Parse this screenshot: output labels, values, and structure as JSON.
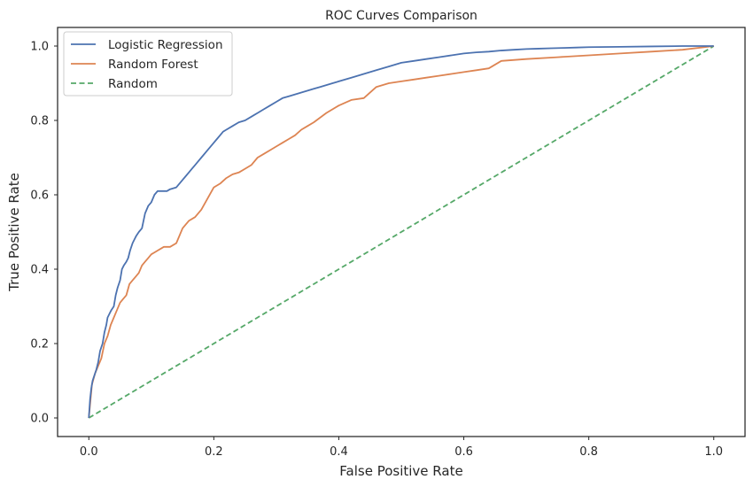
{
  "chart_data": {
    "type": "line",
    "title": "ROC Curves Comparison",
    "xlabel": "False Positive Rate",
    "ylabel": "True Positive Rate",
    "xlim": [
      -0.05,
      1.05
    ],
    "ylim": [
      -0.05,
      1.05
    ],
    "xticks": [
      "0.0",
      "0.2",
      "0.4",
      "0.6",
      "0.8",
      "1.0"
    ],
    "yticks": [
      "0.0",
      "0.2",
      "0.4",
      "0.6",
      "0.8",
      "1.0"
    ],
    "grid": false,
    "legend_position": "top-left",
    "series": [
      {
        "name": "Logistic Regression",
        "color": "#4c72b0",
        "style": "solid",
        "x": [
          0.0,
          0.002,
          0.004,
          0.006,
          0.008,
          0.01,
          0.012,
          0.015,
          0.018,
          0.02,
          0.022,
          0.025,
          0.028,
          0.03,
          0.033,
          0.036,
          0.04,
          0.043,
          0.046,
          0.05,
          0.053,
          0.056,
          0.06,
          0.063,
          0.066,
          0.07,
          0.073,
          0.076,
          0.08,
          0.085,
          0.09,
          0.095,
          0.1,
          0.105,
          0.11,
          0.115,
          0.12,
          0.125,
          0.13,
          0.14,
          0.15,
          0.155,
          0.16,
          0.165,
          0.17,
          0.175,
          0.18,
          0.19,
          0.2,
          0.205,
          0.21,
          0.215,
          0.22,
          0.23,
          0.24,
          0.25,
          0.26,
          0.27,
          0.28,
          0.29,
          0.3,
          0.31,
          0.32,
          0.33,
          0.34,
          0.35,
          0.36,
          0.37,
          0.38,
          0.39,
          0.4,
          0.42,
          0.44,
          0.46,
          0.48,
          0.5,
          0.52,
          0.54,
          0.56,
          0.58,
          0.6,
          0.62,
          0.64,
          0.66,
          0.68,
          0.7,
          0.72,
          0.74,
          0.76,
          0.78,
          0.8,
          0.85,
          0.9,
          0.95,
          1.0
        ],
        "y": [
          0.0,
          0.05,
          0.08,
          0.1,
          0.11,
          0.12,
          0.13,
          0.15,
          0.18,
          0.19,
          0.2,
          0.23,
          0.25,
          0.27,
          0.28,
          0.29,
          0.3,
          0.33,
          0.35,
          0.37,
          0.4,
          0.41,
          0.42,
          0.43,
          0.45,
          0.47,
          0.48,
          0.49,
          0.5,
          0.51,
          0.55,
          0.57,
          0.58,
          0.6,
          0.61,
          0.61,
          0.61,
          0.61,
          0.615,
          0.62,
          0.64,
          0.65,
          0.66,
          0.67,
          0.68,
          0.69,
          0.7,
          0.72,
          0.74,
          0.75,
          0.76,
          0.77,
          0.775,
          0.785,
          0.795,
          0.8,
          0.81,
          0.82,
          0.83,
          0.84,
          0.85,
          0.86,
          0.865,
          0.87,
          0.875,
          0.88,
          0.885,
          0.89,
          0.895,
          0.9,
          0.905,
          0.915,
          0.925,
          0.935,
          0.945,
          0.955,
          0.96,
          0.965,
          0.97,
          0.975,
          0.98,
          0.983,
          0.985,
          0.988,
          0.99,
          0.992,
          0.993,
          0.994,
          0.995,
          0.996,
          0.997,
          0.998,
          0.999,
          1.0,
          1.0
        ]
      },
      {
        "name": "Random Forest",
        "color": "#dd8452",
        "style": "solid",
        "x": [
          0.0,
          0.005,
          0.01,
          0.015,
          0.02,
          0.025,
          0.03,
          0.035,
          0.04,
          0.045,
          0.05,
          0.055,
          0.06,
          0.065,
          0.07,
          0.075,
          0.08,
          0.085,
          0.09,
          0.095,
          0.1,
          0.105,
          0.11,
          0.12,
          0.13,
          0.14,
          0.15,
          0.16,
          0.17,
          0.18,
          0.19,
          0.2,
          0.21,
          0.22,
          0.23,
          0.24,
          0.25,
          0.26,
          0.27,
          0.28,
          0.29,
          0.3,
          0.31,
          0.32,
          0.33,
          0.34,
          0.35,
          0.36,
          0.38,
          0.4,
          0.42,
          0.44,
          0.46,
          0.48,
          0.5,
          0.52,
          0.54,
          0.56,
          0.58,
          0.6,
          0.62,
          0.64,
          0.66,
          0.7,
          0.75,
          0.8,
          0.85,
          0.9,
          0.95,
          1.0
        ],
        "y": [
          0.0,
          0.09,
          0.12,
          0.14,
          0.16,
          0.2,
          0.22,
          0.25,
          0.27,
          0.29,
          0.31,
          0.32,
          0.33,
          0.36,
          0.37,
          0.38,
          0.39,
          0.41,
          0.42,
          0.43,
          0.44,
          0.445,
          0.45,
          0.46,
          0.46,
          0.47,
          0.51,
          0.53,
          0.54,
          0.56,
          0.59,
          0.62,
          0.63,
          0.645,
          0.655,
          0.66,
          0.67,
          0.68,
          0.7,
          0.71,
          0.72,
          0.73,
          0.74,
          0.75,
          0.76,
          0.775,
          0.785,
          0.795,
          0.82,
          0.84,
          0.855,
          0.86,
          0.89,
          0.9,
          0.905,
          0.91,
          0.915,
          0.92,
          0.925,
          0.93,
          0.935,
          0.94,
          0.96,
          0.965,
          0.97,
          0.975,
          0.98,
          0.985,
          0.99,
          1.0
        ]
      },
      {
        "name": "Random",
        "color": "#55a868",
        "style": "dashed",
        "x": [
          0.0,
          1.0
        ],
        "y": [
          0.0,
          1.0
        ]
      }
    ]
  }
}
